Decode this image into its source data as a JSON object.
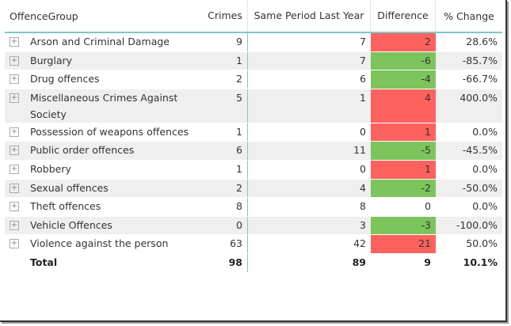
{
  "columns": [
    "OffenceGroup",
    "Crimes",
    "Same Period Last Year",
    "Difference",
    "% Change"
  ],
  "rows": [
    {
      "name": "Arson and Criminal Damage",
      "crimes": "9",
      "sply": "7",
      "diff": "2",
      "pct": "28.6%",
      "color": "red"
    },
    {
      "name": "Burglary",
      "crimes": "1",
      "sply": "7",
      "diff": "-6",
      "pct": "-85.7%",
      "color": "green"
    },
    {
      "name": "Drug offences",
      "crimes": "2",
      "sply": "6",
      "diff": "-4",
      "pct": "-66.7%",
      "color": "green"
    },
    {
      "name": "Miscellaneous Crimes Against Society",
      "crimes": "5",
      "sply": "1",
      "diff": "4",
      "pct": "400.0%",
      "color": "red"
    },
    {
      "name": "Possession of weapons offences",
      "crimes": "1",
      "sply": "0",
      "diff": "1",
      "pct": "0.0%",
      "color": "red"
    },
    {
      "name": "Public order offences",
      "crimes": "6",
      "sply": "11",
      "diff": "-5",
      "pct": "-45.5%",
      "color": "green"
    },
    {
      "name": "Robbery",
      "crimes": "1",
      "sply": "0",
      "diff": "1",
      "pct": "0.0%",
      "color": "red"
    },
    {
      "name": "Sexual offences",
      "crimes": "2",
      "sply": "4",
      "diff": "-2",
      "pct": "-50.0%",
      "color": "green"
    },
    {
      "name": "Theft offences",
      "crimes": "8",
      "sply": "8",
      "diff": "0",
      "pct": "0.0%",
      "color": ""
    },
    {
      "name": "Vehicle Offences",
      "crimes": "0",
      "sply": "3",
      "diff": "-3",
      "pct": "-100.0%",
      "color": "green"
    },
    {
      "name": "Violence against the person",
      "crimes": "63",
      "sply": "42",
      "diff": "21",
      "pct": "50.0%",
      "color": "red"
    }
  ],
  "total": {
    "name": "Total",
    "crimes": "98",
    "sply": "89",
    "diff": "9",
    "pct": "10.1%"
  },
  "colors": {
    "increase": "#fd625e",
    "decrease": "#7cc45c",
    "accent": "#7fc7c7"
  },
  "expand_icon": "plus-box-icon"
}
